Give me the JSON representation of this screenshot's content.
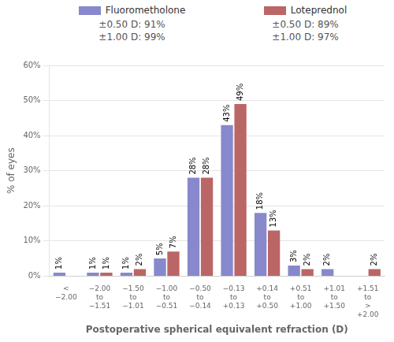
{
  "chart_data": {
    "type": "bar",
    "categories": [
      "<\n−2.00",
      "−2.00\nto\n−1.51",
      "−1.50\nto\n−1.01",
      "−1.00\nto\n−0.51",
      "−0.50\nto\n−0.14",
      "−0.13\nto\n+0.13",
      "+0.14\nto\n+0.50",
      "+0.51\nto\n+1.00",
      "+1.01\nto\n+1.50",
      "+1.51\nto\n>\n+2.00"
    ],
    "series": [
      {
        "name": "Fluorometholone",
        "color": "#8888CC",
        "values": [
          1,
          1,
          1,
          5,
          28,
          43,
          18,
          3,
          2,
          0
        ],
        "value_labels": [
          "1%",
          "1%",
          "1%",
          "5%",
          "28%",
          "43%",
          "18%",
          "3%",
          "2%",
          null
        ]
      },
      {
        "name": "Loteprednol",
        "color": "#BB6666",
        "values": [
          0,
          1,
          2,
          7,
          28,
          49,
          13,
          2,
          0,
          2
        ],
        "value_labels": [
          null,
          "1%",
          "2%",
          "7%",
          "28%",
          "49%",
          "13%",
          "2%",
          null,
          "2%"
        ]
      }
    ],
    "annotations": [
      "±0.50 D: 91%\n±1.00 D: 99%",
      "±0.50 D: 89%\n±1.00 D: 97%"
    ],
    "xlabel": "Postoperative spherical equivalent refraction (D)",
    "ylabel": "% of eyes",
    "ylim": [
      0,
      60
    ],
    "yticks": [
      {
        "value": 0,
        "label": "0%"
      },
      {
        "value": 10,
        "label": "10%"
      },
      {
        "value": 20,
        "label": "20%"
      },
      {
        "value": 30,
        "label": "30%"
      },
      {
        "value": 40,
        "label": "40%"
      },
      {
        "value": 50,
        "label": "50%"
      },
      {
        "value": 60,
        "label": "60%"
      }
    ],
    "grid": true,
    "legend": "top",
    "data_labels": true
  }
}
